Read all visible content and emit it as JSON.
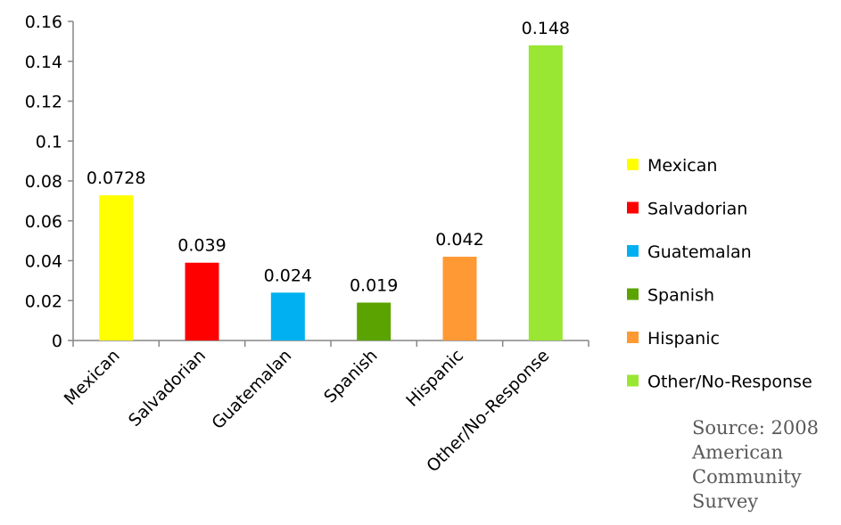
{
  "chart_data": {
    "type": "bar",
    "categories": [
      "Mexican",
      "Salvadorian",
      "Guatemalan",
      "Spanish",
      "Hispanic",
      "Other/No-Response"
    ],
    "values": [
      0.0728,
      0.039,
      0.024,
      0.019,
      0.042,
      0.148
    ],
    "data_labels": [
      "0.0728",
      "0.039",
      "0.024",
      "0.019",
      "0.042",
      "0.148"
    ],
    "colors": [
      "#FFFF00",
      "#FF0000",
      "#00B0F0",
      "#5BA300",
      "#FF9933",
      "#99E633"
    ],
    "ylim": [
      0,
      0.16
    ],
    "yticks": [
      0,
      0.02,
      0.04,
      0.06,
      0.08,
      0.1,
      0.12,
      0.14,
      0.16
    ],
    "ytick_labels": [
      "0",
      "0.02",
      "0.04",
      "0.06",
      "0.08",
      "0.1",
      "0.12",
      "0.14",
      "0.16"
    ],
    "legend": {
      "position": "right",
      "entries": [
        "Mexican",
        "Salvadorian",
        "Guatemalan",
        "Spanish",
        "Hispanic",
        "Other/No-Response"
      ]
    },
    "grid": false,
    "annotation_lines": [
      "Source:  2008",
      "American",
      "Community",
      "Survey"
    ]
  }
}
